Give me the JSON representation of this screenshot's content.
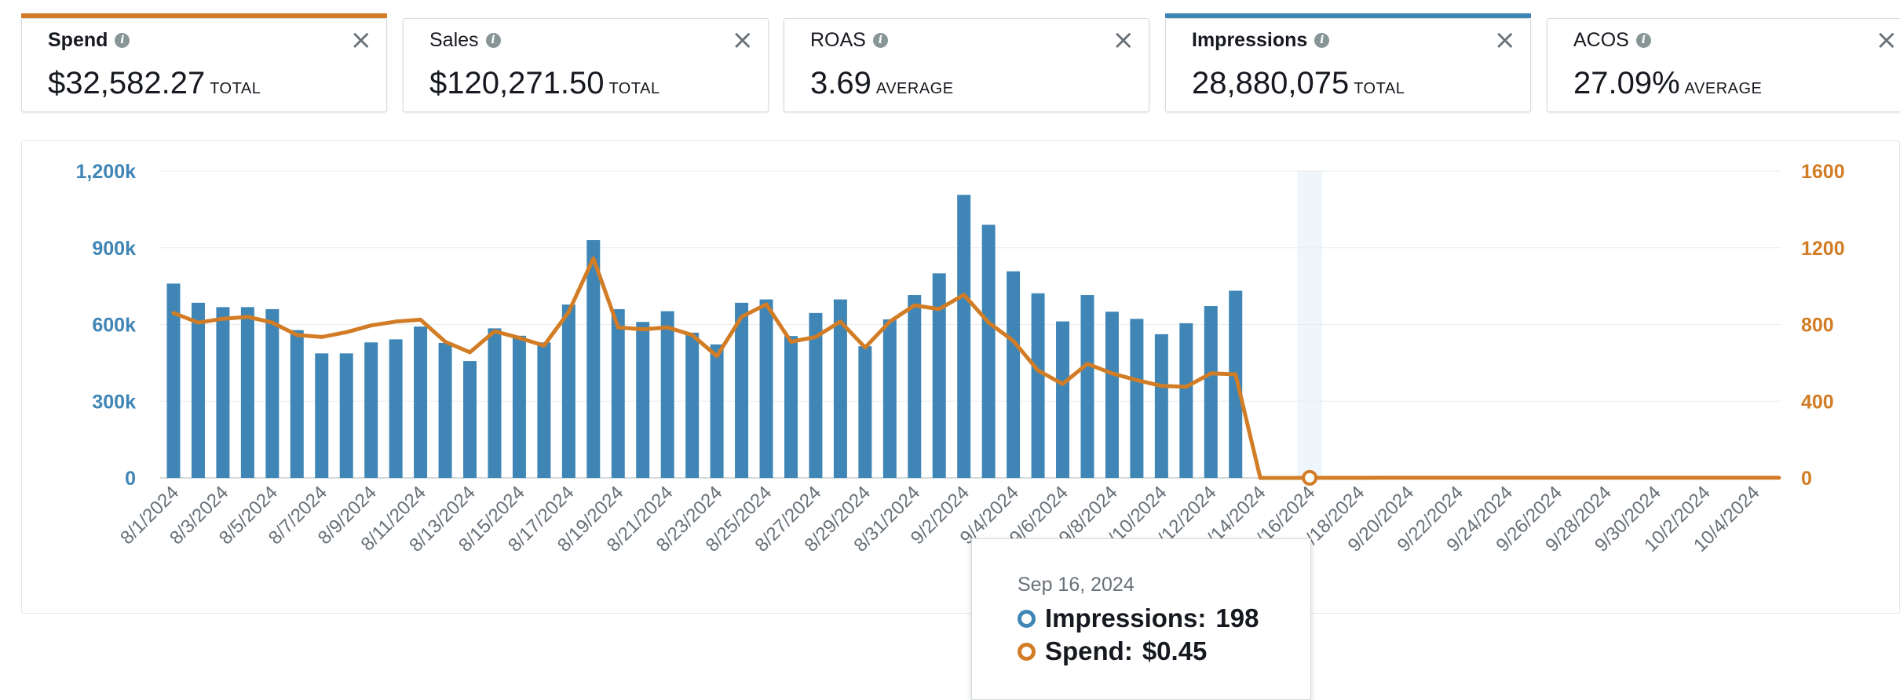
{
  "metrics": [
    {
      "name": "Spend",
      "value": "$32,582.27",
      "aggregate": "TOTAL",
      "selected": true,
      "color": "#d27d25"
    },
    {
      "name": "Sales",
      "value": "$120,271.50",
      "aggregate": "TOTAL",
      "selected": false,
      "color": ""
    },
    {
      "name": "ROAS",
      "value": "3.69",
      "aggregate": "AVERAGE",
      "selected": false,
      "color": ""
    },
    {
      "name": "Impressions",
      "value": "28,880,075",
      "aggregate": "TOTAL",
      "selected": true,
      "color": "#3f86b6"
    },
    {
      "name": "ACOS",
      "value": "27.09%",
      "aggregate": "AVERAGE",
      "selected": false,
      "color": ""
    }
  ],
  "icons": {
    "info": "info-icon",
    "close": "close-icon",
    "close_glyph": "×",
    "info_glyph": "i"
  },
  "tooltip": {
    "date": "Sep 16, 2024",
    "rows": [
      {
        "label": "Impressions:",
        "value": "198",
        "color": "#3f86b6"
      },
      {
        "label": "Spend:",
        "value": "$0.45",
        "color": "#d27d25"
      }
    ]
  },
  "chart_data": {
    "type": "bar",
    "colors": {
      "impressions": "#3f86b6",
      "spend": "#d27d25",
      "highlight": "#eef6fc"
    },
    "grid": true,
    "highlighted_category": "9/16/2024",
    "categories": [
      "8/1/2024",
      "8/2/2024",
      "8/3/2024",
      "8/4/2024",
      "8/5/2024",
      "8/6/2024",
      "8/7/2024",
      "8/8/2024",
      "8/9/2024",
      "8/10/2024",
      "8/11/2024",
      "8/12/2024",
      "8/13/2024",
      "8/14/2024",
      "8/15/2024",
      "8/16/2024",
      "8/17/2024",
      "8/18/2024",
      "8/19/2024",
      "8/20/2024",
      "8/21/2024",
      "8/22/2024",
      "8/23/2024",
      "8/24/2024",
      "8/25/2024",
      "8/26/2024",
      "8/27/2024",
      "8/28/2024",
      "8/29/2024",
      "8/30/2024",
      "8/31/2024",
      "9/1/2024",
      "9/2/2024",
      "9/3/2024",
      "9/4/2024",
      "9/5/2024",
      "9/6/2024",
      "9/7/2024",
      "9/8/2024",
      "9/9/2024",
      "9/10/2024",
      "9/11/2024",
      "9/12/2024",
      "9/13/2024",
      "9/14/2024",
      "9/15/2024",
      "9/16/2024",
      "9/17/2024",
      "9/18/2024",
      "9/19/2024",
      "9/20/2024",
      "9/21/2024",
      "9/22/2024",
      "9/23/2024",
      "9/24/2024",
      "9/25/2024",
      "9/26/2024",
      "9/27/2024",
      "9/28/2024",
      "9/29/2024",
      "9/30/2024",
      "10/1/2024",
      "10/2/2024",
      "10/3/2024",
      "10/4/2024",
      "10/5/2024"
    ],
    "tick_labels": [
      "8/1/2024",
      "8/3/2024",
      "8/5/2024",
      "8/7/2024",
      "8/9/2024",
      "8/11/2024",
      "8/13/2024",
      "8/15/2024",
      "8/17/2024",
      "8/19/2024",
      "8/21/2024",
      "8/23/2024",
      "8/25/2024",
      "8/27/2024",
      "8/29/2024",
      "8/31/2024",
      "9/2/2024",
      "9/4/2024",
      "9/6/2024",
      "9/8/2024",
      "9/10/2024",
      "9/12/2024",
      "9/14/2024",
      "9/16/2024",
      "9/18/2024",
      "9/20/2024",
      "9/22/2024",
      "9/24/2024",
      "9/26/2024",
      "9/28/2024",
      "9/30/2024",
      "10/2/2024",
      "10/4/2024"
    ],
    "series": [
      {
        "name": "Impressions",
        "type": "bar",
        "axis": "left",
        "values": [
          760000,
          685000,
          668000,
          668000,
          660000,
          578000,
          487000,
          487000,
          530000,
          542000,
          592000,
          528000,
          457000,
          585000,
          556000,
          530000,
          678000,
          930000,
          660000,
          610000,
          652000,
          568000,
          522000,
          685000,
          698000,
          555000,
          645000,
          698000,
          515000,
          620000,
          715000,
          800000,
          1107000,
          990000,
          808000,
          722000,
          612000,
          715000,
          650000,
          622000,
          562000,
          605000,
          672000,
          732000,
          0,
          0,
          198,
          0,
          0,
          0,
          0,
          0,
          0,
          0,
          0,
          0,
          0,
          0,
          0,
          0,
          0,
          0,
          0,
          0,
          0,
          0
        ]
      },
      {
        "name": "Spend",
        "type": "line",
        "axis": "right",
        "values": [
          860,
          810,
          830,
          840,
          810,
          745,
          735,
          760,
          795,
          815,
          825,
          710,
          655,
          765,
          730,
          690,
          865,
          1145,
          785,
          775,
          785,
          745,
          635,
          840,
          905,
          710,
          735,
          815,
          680,
          815,
          900,
          880,
          955,
          810,
          715,
          560,
          490,
          595,
          545,
          510,
          480,
          475,
          545,
          540,
          0,
          0,
          0.45,
          0.5,
          0.5,
          1,
          1,
          1,
          1,
          1,
          1,
          1,
          1,
          1,
          1,
          1,
          1,
          1,
          1,
          1,
          1,
          1
        ]
      }
    ],
    "y_left": {
      "ylim": [
        0,
        1200000
      ],
      "ticks": [
        0,
        300000,
        600000,
        900000,
        1200000
      ],
      "tick_labels": [
        "0",
        "300k",
        "600k",
        "900k",
        "1,200k"
      ]
    },
    "y_right": {
      "ylim": [
        0,
        1600
      ],
      "ticks": [
        0,
        400,
        800,
        1200,
        1600
      ],
      "tick_labels": [
        "0",
        "400",
        "800",
        "1200",
        "1600"
      ]
    }
  }
}
